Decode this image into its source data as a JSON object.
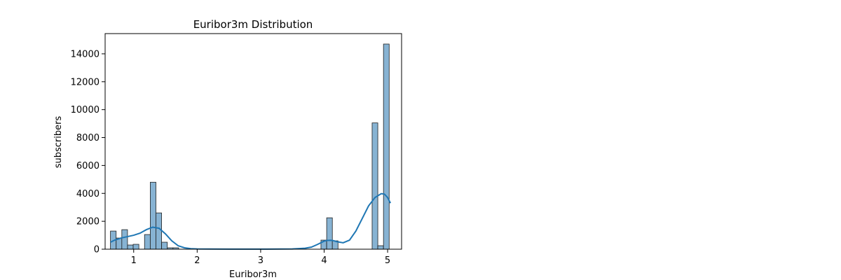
{
  "chart_data": {
    "type": "bar",
    "title": "Euribor3m Distribution",
    "xlabel": "Euribor3m",
    "ylabel": "subscribers",
    "xlim": [
      0.55,
      5.22
    ],
    "ylim": [
      0,
      15450
    ],
    "xticks": [
      1,
      2,
      3,
      4,
      5
    ],
    "yticks": [
      0,
      2000,
      4000,
      6000,
      8000,
      10000,
      12000,
      14000
    ],
    "bin_width": 0.0895,
    "grid": false,
    "legend": "none",
    "bars": [
      {
        "x0": 0.634,
        "count": 1300
      },
      {
        "x0": 0.724,
        "count": 800
      },
      {
        "x0": 0.813,
        "count": 1400
      },
      {
        "x0": 0.903,
        "count": 300
      },
      {
        "x0": 0.992,
        "count": 350
      },
      {
        "x0": 1.082,
        "count": 0
      },
      {
        "x0": 1.171,
        "count": 1050
      },
      {
        "x0": 1.261,
        "count": 4800
      },
      {
        "x0": 1.35,
        "count": 2600
      },
      {
        "x0": 1.44,
        "count": 500
      },
      {
        "x0": 1.53,
        "count": 100
      },
      {
        "x0": 1.619,
        "count": 100
      },
      {
        "x0": 3.95,
        "count": 650
      },
      {
        "x0": 4.04,
        "count": 2250
      },
      {
        "x0": 4.129,
        "count": 600
      },
      {
        "x0": 4.756,
        "count": 9050
      },
      {
        "x0": 4.845,
        "count": 250
      },
      {
        "x0": 4.935,
        "count": 14700
      }
    ],
    "kde": {
      "x": [
        0.634,
        0.7,
        0.8,
        0.9,
        1.0,
        1.1,
        1.2,
        1.3,
        1.4,
        1.5,
        1.6,
        1.7,
        1.8,
        1.9,
        2.0,
        2.2,
        2.5,
        3.0,
        3.5,
        3.7,
        3.8,
        3.9,
        4.0,
        4.05,
        4.1,
        4.15,
        4.2,
        4.3,
        4.4,
        4.5,
        4.6,
        4.7,
        4.8,
        4.9,
        4.95,
        5.0,
        5.045
      ],
      "y": [
        500,
        650,
        800,
        900,
        1000,
        1150,
        1400,
        1580,
        1500,
        1100,
        600,
        250,
        100,
        40,
        20,
        10,
        5,
        5,
        20,
        70,
        150,
        350,
        580,
        630,
        640,
        610,
        540,
        460,
        650,
        1300,
        2200,
        3100,
        3700,
        3980,
        3950,
        3700,
        3300
      ]
    },
    "bar_fill": "#87b3d3",
    "bar_stroke": "#1f1f1f",
    "kde_color": "#1f77b4"
  }
}
